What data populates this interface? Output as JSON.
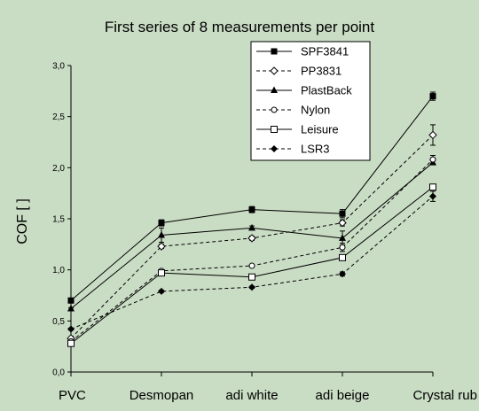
{
  "chart_data": {
    "type": "line",
    "title": "First series of 8 measurements per point",
    "xlabel": "",
    "ylabel": "COF [ ]",
    "ylim": [
      0,
      3
    ],
    "yticks": [
      "0,0",
      "0,5",
      "1,0",
      "1,5",
      "2,0",
      "2,5",
      "3,0"
    ],
    "categories": [
      "PVC",
      "Desmopan",
      "adi white",
      "adi beige",
      "Crystal rub"
    ],
    "grid": false,
    "legend_position": "top-right",
    "series": [
      {
        "name": "SPF3841",
        "values": [
          0.7,
          1.46,
          1.59,
          1.55,
          2.7
        ],
        "errors": [
          0.01,
          0.03,
          0.03,
          0.04,
          0.04
        ],
        "line": "solid",
        "marker": "filled-square"
      },
      {
        "name": "PP3831",
        "values": [
          0.33,
          1.23,
          1.31,
          1.46,
          2.32
        ],
        "errors": [
          0.01,
          0.02,
          0.02,
          0.03,
          0.1
        ],
        "line": "dashed",
        "marker": "open-diamond"
      },
      {
        "name": "PlastBack",
        "values": [
          0.62,
          1.34,
          1.41,
          1.31,
          2.05
        ],
        "errors": [
          0.01,
          0.07,
          0.02,
          0.07,
          0.02
        ],
        "line": "solid",
        "marker": "filled-triangle"
      },
      {
        "name": "Nylon",
        "values": [
          0.3,
          0.99,
          1.04,
          1.22,
          2.08
        ],
        "errors": [
          0.01,
          0.01,
          0.01,
          0.04,
          0.04
        ],
        "line": "dashed",
        "marker": "open-circle"
      },
      {
        "name": "Leisure",
        "values": [
          0.28,
          0.97,
          0.93,
          1.12,
          1.81
        ],
        "errors": [
          0.01,
          0.01,
          0.01,
          0.01,
          0.02
        ],
        "line": "solid",
        "marker": "open-square"
      },
      {
        "name": "LSR3",
        "values": [
          0.42,
          0.79,
          0.83,
          0.96,
          1.72
        ],
        "errors": [
          0.01,
          0.01,
          0.01,
          0.02,
          0.05
        ],
        "line": "dashed",
        "marker": "filled-diamond"
      }
    ]
  }
}
